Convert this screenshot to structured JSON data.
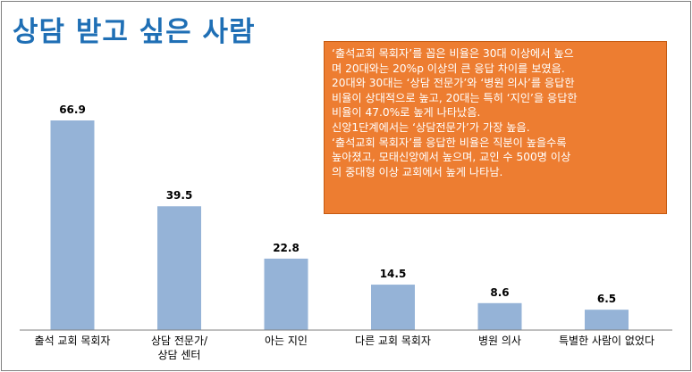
{
  "title": "상담 받고 싶은 사람",
  "note": {
    "lines": [
      "‘출석교회 목회자’를 꼽은 비율은 30대 이상에서 높으",
      "며 20대와는 20%p 이상의 큰 응답 차이를 보였음.",
      "20대와 30대는 ‘상담 전문가’와 ‘병원 의사’를 응답한",
      "비율이 상대적으로 높고, 20대는 특히 ‘지인’을 응답한",
      "비율이 47.0%로 높게 나타났음.",
      "신앙1단계에서는 ‘상담전문가’가 가장 높음.",
      "‘출석교회 목회자’를 응답한 비율은 직분이 높을수록",
      "높아졌고, 모태신앙에서 높으며, 교인 수 500명 이상",
      "의 중대형 이상 교회에서 높게 나타남."
    ],
    "background": "#ed7d31"
  },
  "chart_data": {
    "type": "bar",
    "categories": [
      [
        "출석 교회 목회자"
      ],
      [
        "상담 전문가/",
        "상담 센터"
      ],
      [
        "아는 지인"
      ],
      [
        "다른 교회 목회자"
      ],
      [
        "병원 의사"
      ],
      [
        "특별한 사람이 없었다"
      ]
    ],
    "values": [
      66.9,
      39.5,
      22.8,
      14.5,
      8.6,
      6.5
    ],
    "value_labels": [
      "66.9",
      "39.5",
      "22.8",
      "14.5",
      "8.6",
      "6.5"
    ],
    "ylim": [
      0,
      70
    ],
    "bar_color": "#95b3d7",
    "title": "",
    "xlabel": "",
    "ylabel": "",
    "grid": false,
    "legend": false
  }
}
